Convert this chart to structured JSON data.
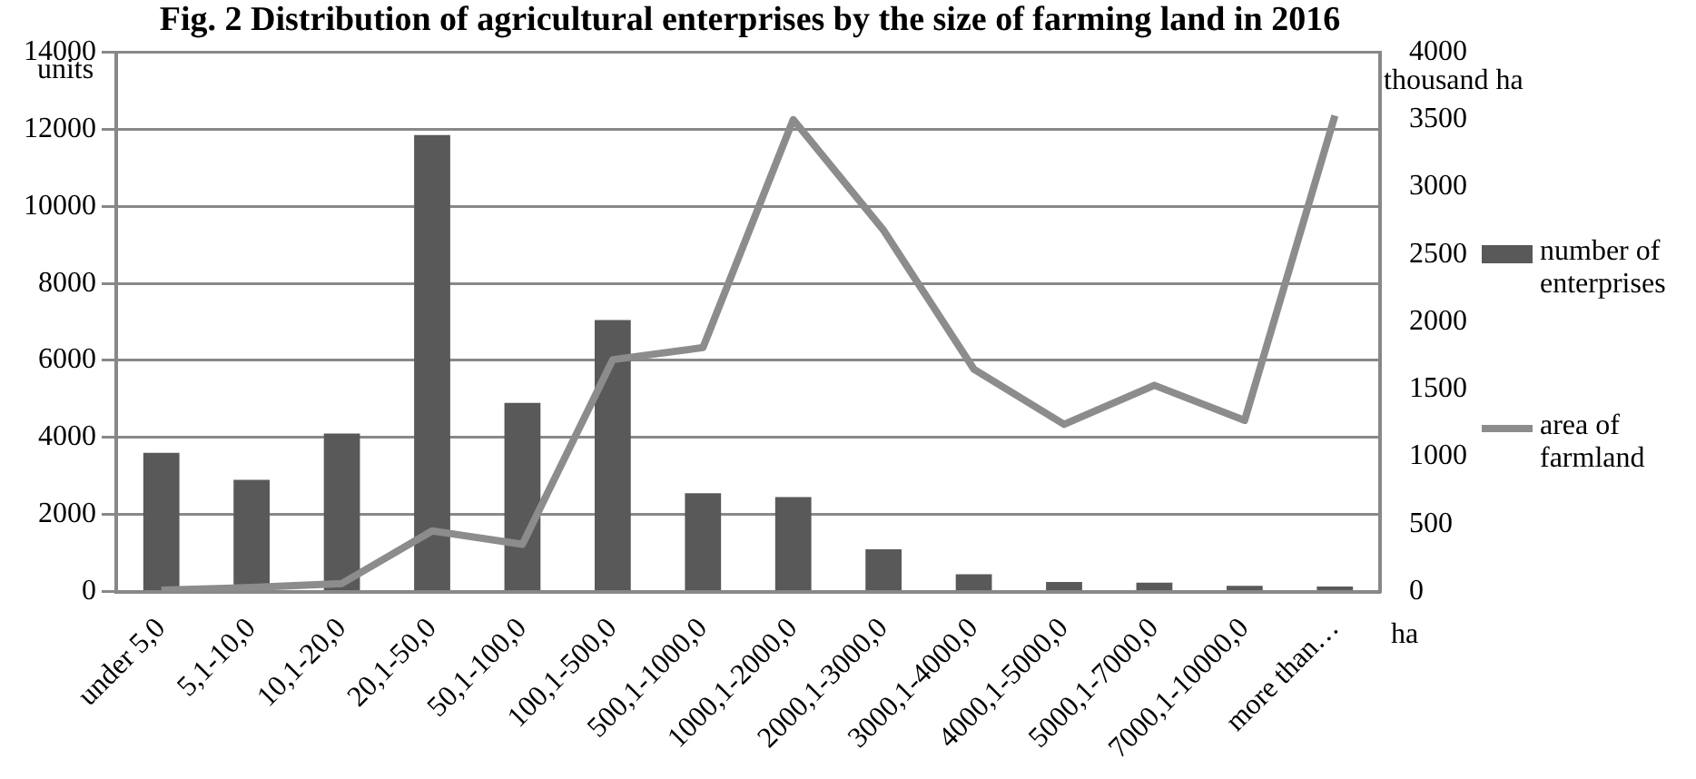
{
  "chart_data": {
    "type": "bar",
    "title": "Fig. 2 Distribution of agricultural enterprises by the size of farming land in 2016",
    "xlabel": "ha",
    "ylabel": "units",
    "y2label": "thousand ha",
    "categories": [
      "under 5,0",
      "5,1-10,0",
      "10,1-20,0",
      "20,1-50,0",
      "50,1-100,0",
      "100,1-500,0",
      "500,1-1000,0",
      "1000,1-2000,0",
      "2000,1-3000,0",
      "3000,1-4000,0",
      "4000,1-5000,0",
      "5000,1-7000,0",
      "7000,1-10000,0",
      "more than…"
    ],
    "series": [
      {
        "name": "number of enterprises",
        "color": "#595959",
        "values": [
          3600,
          2900,
          4100,
          11850,
          4900,
          7050,
          2550,
          2450,
          1100,
          450,
          250,
          230,
          150,
          130
        ]
      },
      {
        "name": "area of farmland",
        "type": "line",
        "axis": "y2",
        "color": "#8c8c8c",
        "values": [
          10,
          30,
          60,
          450,
          350,
          1720,
          1810,
          3500,
          2680,
          1650,
          1240,
          1530,
          1270,
          3530
        ]
      }
    ],
    "ylim": [
      0,
      14000
    ],
    "yticks": [
      0,
      2000,
      4000,
      6000,
      8000,
      10000,
      12000,
      14000
    ],
    "y2lim": [
      0,
      4000
    ],
    "y2ticks": [
      0,
      500,
      1000,
      1500,
      2000,
      2500,
      3000,
      3500,
      4000
    ],
    "grid": "y",
    "legend": "right",
    "marker": "none",
    "line_style": "solid"
  }
}
